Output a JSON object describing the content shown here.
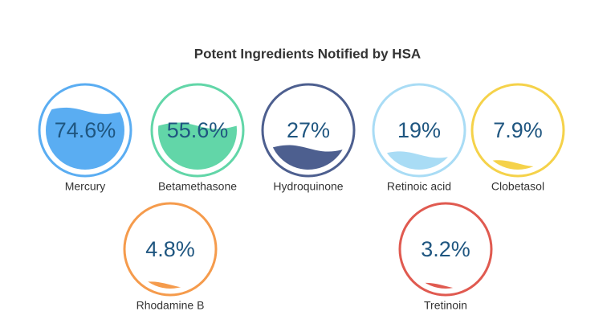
{
  "chart_data": {
    "type": "liquidfill",
    "title": "Potent Ingredients Notified by HSA",
    "categories": [
      "Mercury",
      "Betamethasone",
      "Hydroquinone",
      "Retinoic acid",
      "Clobetasol",
      "Rhodamine B",
      "Tretinoin"
    ],
    "values": [
      74.6,
      55.6,
      27,
      19,
      7.9,
      4.8,
      3.2
    ],
    "value_labels": [
      "74.6%",
      "55.6%",
      "27%",
      "19%",
      "7.9%",
      "4.8%",
      "3.2%"
    ],
    "colors": [
      "#5aadf2",
      "#62d6a8",
      "#4d5f8f",
      "#a9dcf5",
      "#f5d24a",
      "#f59b4c",
      "#e05a50"
    ],
    "ylim": [
      0,
      100
    ]
  }
}
